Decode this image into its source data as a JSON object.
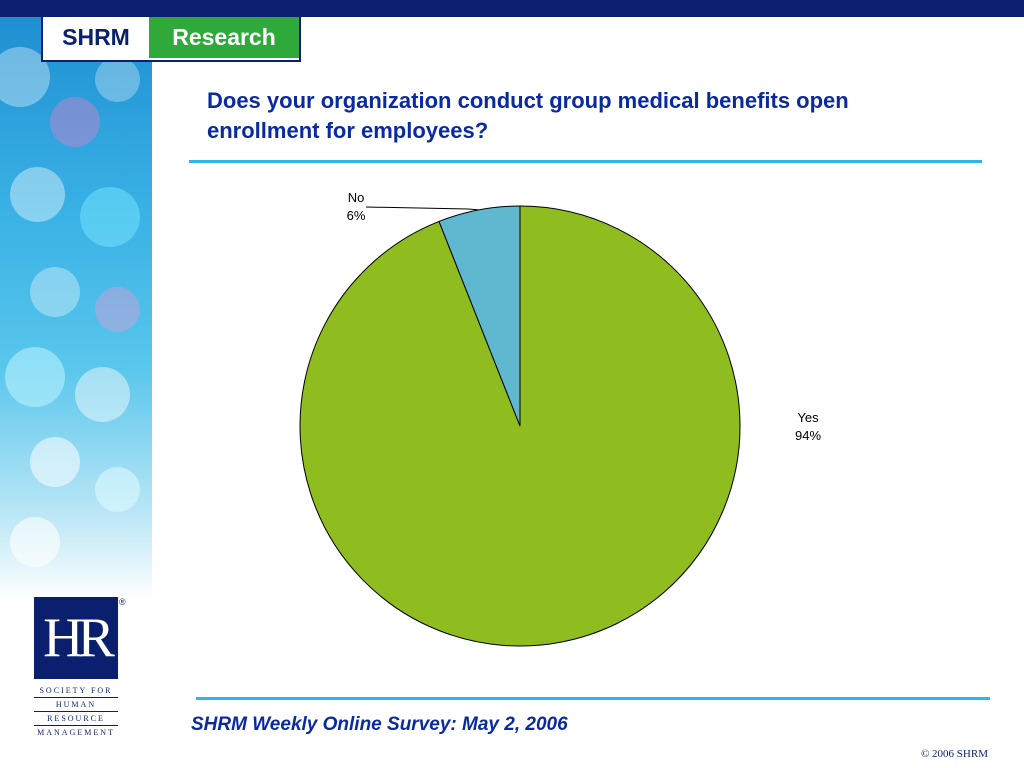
{
  "header": {
    "logo_left": "SHRM",
    "logo_right": "Research"
  },
  "title": "Does your organization conduct group medical benefits open enrollment for employees?",
  "footer": {
    "survey": "SHRM Weekly Online Survey: May 2, 2006",
    "copyright": "© 2006 SHRM"
  },
  "hr_logo": {
    "mark": "HR",
    "reg": "®",
    "lines": [
      "SOCIETY FOR",
      "HUMAN",
      "RESOURCE",
      "MANAGEMENT"
    ]
  },
  "colors": {
    "navy": "#0a1f6e",
    "accent_blue": "#2fb6e8",
    "title_blue": "#0a2aa0",
    "green": "#8fbc1e",
    "light_blue": "#5fb8cf",
    "research_green": "#2faa3a"
  },
  "chart_data": {
    "type": "pie",
    "title": "Does your organization conduct group medical benefits open enrollment for employees?",
    "slices": [
      {
        "label": "Yes",
        "value": 94,
        "display": "94%",
        "color": "#8fbc1e"
      },
      {
        "label": "No",
        "value": 6,
        "display": "6%",
        "color": "#5fb8cf"
      }
    ]
  }
}
